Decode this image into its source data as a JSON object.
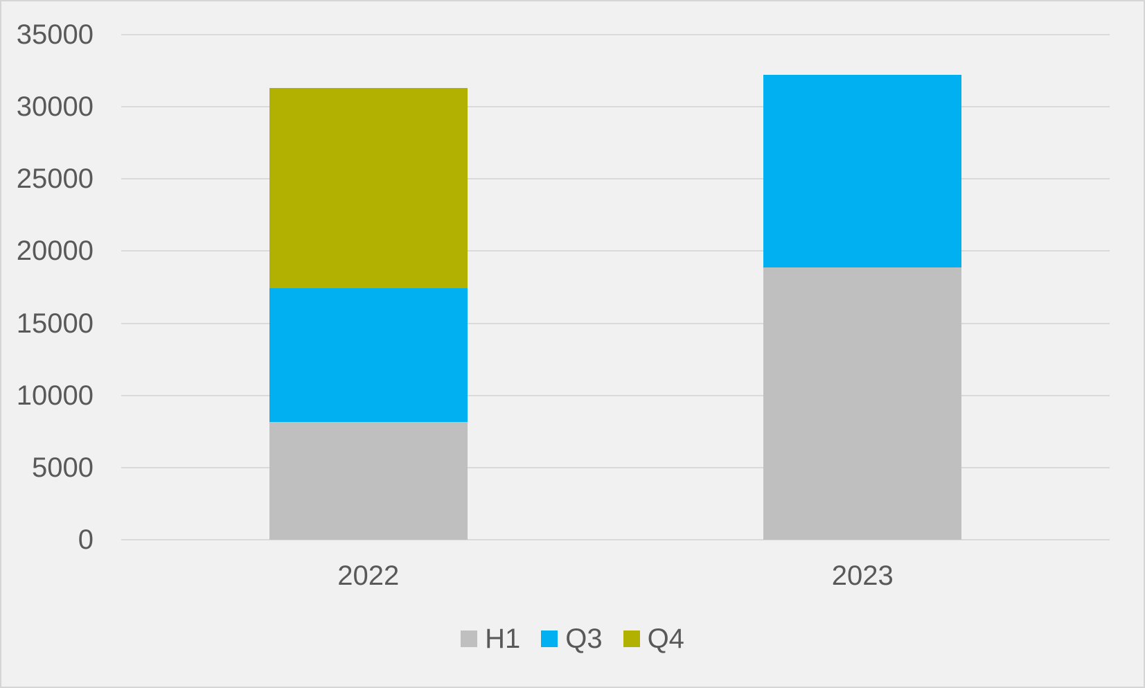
{
  "chart": {
    "background_color": "#f1f1f1",
    "border_color": "#d5d5d5",
    "gridline_color": "#dadada",
    "text_color": "#595959"
  },
  "chart_data": {
    "type": "bar",
    "stacked": true,
    "title": "",
    "xlabel": "",
    "ylabel": "",
    "categories": [
      "2022",
      "2023"
    ],
    "series": [
      {
        "name": "H1",
        "color": "#bfbfbf",
        "values": [
          8180,
          18870
        ]
      },
      {
        "name": "Q3",
        "color": "#00b0f0",
        "values": [
          9260,
          13360
        ]
      },
      {
        "name": "Q4",
        "color": "#b2b000",
        "values": [
          13880,
          0
        ]
      }
    ],
    "ylim": [
      0,
      35000
    ],
    "yticks": [
      0,
      5000,
      10000,
      15000,
      20000,
      25000,
      30000,
      35000
    ],
    "grid": true,
    "legend_position": "bottom",
    "legend": [
      "H1",
      "Q3",
      "Q4"
    ]
  }
}
